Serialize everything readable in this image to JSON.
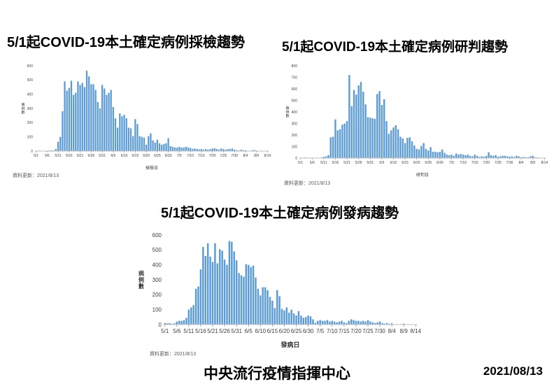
{
  "page": {
    "footer_org": "中央流行疫情指揮中心",
    "footer_date": "2021/08/13"
  },
  "colors": {
    "bar": "#5B9BD5",
    "axis_line": "#BFBFBF",
    "tick_mark": "#8C8C8C",
    "tick_text": "#404040",
    "axis_title_text": "#303030"
  },
  "chart_data": [
    {
      "type": "bar",
      "title": "5/1起COVID-19本土確定病例採檢趨勢",
      "xlabel": "採檢日",
      "ylabel": "病例數",
      "footnote": "資料更新：2021/8/13",
      "ylim": [
        0,
        600
      ],
      "ytick_step": 100,
      "x_tick_every": 5,
      "grid": false,
      "legend": false,
      "categories": [
        "5/1",
        "5/2",
        "5/3",
        "5/4",
        "5/5",
        "5/6",
        "5/7",
        "5/8",
        "5/9",
        "5/10",
        "5/11",
        "5/12",
        "5/13",
        "5/14",
        "5/15",
        "5/16",
        "5/17",
        "5/18",
        "5/19",
        "5/20",
        "5/21",
        "5/22",
        "5/23",
        "5/24",
        "5/25",
        "5/26",
        "5/27",
        "5/28",
        "5/29",
        "5/30",
        "5/31",
        "6/1",
        "6/2",
        "6/3",
        "6/4",
        "6/5",
        "6/6",
        "6/7",
        "6/8",
        "6/9",
        "6/10",
        "6/11",
        "6/12",
        "6/13",
        "6/14",
        "6/15",
        "6/16",
        "6/17",
        "6/18",
        "6/19",
        "6/20",
        "6/21",
        "6/22",
        "6/23",
        "6/24",
        "6/25",
        "6/26",
        "6/27",
        "6/28",
        "6/29",
        "6/30",
        "7/1",
        "7/2",
        "7/3",
        "7/4",
        "7/5",
        "7/6",
        "7/7",
        "7/8",
        "7/9",
        "7/10",
        "7/11",
        "7/12",
        "7/13",
        "7/14",
        "7/15",
        "7/16",
        "7/17",
        "7/18",
        "7/19",
        "7/20",
        "7/21",
        "7/22",
        "7/23",
        "7/24",
        "7/25",
        "7/26",
        "7/27",
        "7/28",
        "7/29",
        "7/30",
        "7/31",
        "8/1",
        "8/2",
        "8/3",
        "8/4",
        "8/5",
        "8/6",
        "8/7",
        "8/8",
        "8/9",
        "8/10",
        "8/11",
        "8/12",
        "8/13",
        "8/14"
      ],
      "values": [
        3,
        3,
        3,
        2,
        3,
        3,
        4,
        5,
        5,
        15,
        65,
        100,
        280,
        490,
        425,
        445,
        495,
        395,
        410,
        490,
        465,
        480,
        450,
        565,
        525,
        470,
        470,
        430,
        345,
        300,
        465,
        440,
        395,
        410,
        430,
        310,
        230,
        165,
        265,
        245,
        255,
        230,
        165,
        160,
        105,
        225,
        190,
        105,
        100,
        95,
        45,
        105,
        125,
        75,
        60,
        80,
        55,
        45,
        50,
        55,
        90,
        35,
        30,
        25,
        25,
        30,
        25,
        25,
        30,
        25,
        22,
        15,
        18,
        15,
        12,
        15,
        10,
        14,
        10,
        14,
        18,
        20,
        15,
        10,
        18,
        14,
        10,
        14,
        15,
        18,
        10,
        6,
        5,
        10,
        6,
        5,
        2,
        2,
        5,
        8,
        3,
        2,
        2,
        1,
        1,
        1
      ]
    },
    {
      "type": "bar",
      "title": "5/1起COVID-19本土確定病例研判趨勢",
      "xlabel": "研判日",
      "ylabel": "病例數",
      "footnote": "資料更新：2021/8/13",
      "ylim": [
        0,
        800
      ],
      "ytick_step": 100,
      "x_tick_every": 5,
      "grid": false,
      "legend": false,
      "categories": [
        "5/1",
        "5/2",
        "5/3",
        "5/4",
        "5/5",
        "5/6",
        "5/7",
        "5/8",
        "5/9",
        "5/10",
        "5/11",
        "5/12",
        "5/13",
        "5/14",
        "5/15",
        "5/16",
        "5/17",
        "5/18",
        "5/19",
        "5/20",
        "5/21",
        "5/22",
        "5/23",
        "5/24",
        "5/25",
        "5/26",
        "5/27",
        "5/28",
        "5/29",
        "5/30",
        "5/31",
        "6/1",
        "6/2",
        "6/3",
        "6/4",
        "6/5",
        "6/6",
        "6/7",
        "6/8",
        "6/9",
        "6/10",
        "6/11",
        "6/12",
        "6/13",
        "6/14",
        "6/15",
        "6/16",
        "6/17",
        "6/18",
        "6/19",
        "6/20",
        "6/21",
        "6/22",
        "6/23",
        "6/24",
        "6/25",
        "6/26",
        "6/27",
        "6/28",
        "6/29",
        "6/30",
        "7/1",
        "7/2",
        "7/3",
        "7/4",
        "7/5",
        "7/6",
        "7/7",
        "7/8",
        "7/9",
        "7/10",
        "7/11",
        "7/12",
        "7/13",
        "7/14",
        "7/15",
        "7/16",
        "7/17",
        "7/18",
        "7/19",
        "7/20",
        "7/21",
        "7/22",
        "7/23",
        "7/24",
        "7/25",
        "7/26",
        "7/27",
        "7/28",
        "7/29",
        "7/30",
        "7/31",
        "8/1",
        "8/2",
        "8/3",
        "8/4",
        "8/5",
        "8/6",
        "8/7",
        "8/8",
        "8/9",
        "8/10",
        "8/11",
        "8/12",
        "8/13",
        "8/14"
      ],
      "values": [
        2,
        2,
        5,
        2,
        2,
        2,
        2,
        2,
        3,
        5,
        10,
        15,
        25,
        180,
        185,
        335,
        240,
        250,
        290,
        300,
        320,
        720,
        450,
        590,
        550,
        630,
        660,
        575,
        465,
        355,
        350,
        345,
        340,
        555,
        580,
        460,
        510,
        320,
        210,
        240,
        265,
        285,
        250,
        185,
        170,
        130,
        175,
        180,
        145,
        110,
        80,
        75,
        105,
        130,
        80,
        65,
        95,
        55,
        55,
        50,
        55,
        75,
        45,
        30,
        25,
        30,
        20,
        40,
        30,
        35,
        30,
        25,
        30,
        20,
        15,
        30,
        20,
        10,
        15,
        12,
        20,
        50,
        25,
        20,
        25,
        12,
        15,
        20,
        20,
        15,
        12,
        15,
        10,
        20,
        15,
        6,
        10,
        6,
        6,
        15,
        20,
        6,
        5,
        3,
        2,
        1
      ]
    },
    {
      "type": "bar",
      "title": "5/1起COVID-19本土確定病例發病趨勢",
      "xlabel": "發病日",
      "ylabel": "病例數",
      "footnote": "資料更新：2021/8/13",
      "ylim": [
        0,
        600
      ],
      "ytick_step": 100,
      "x_tick_every": 5,
      "grid": false,
      "legend": false,
      "categories": [
        "5/1",
        "5/2",
        "5/3",
        "5/4",
        "5/5",
        "5/6",
        "5/7",
        "5/8",
        "5/9",
        "5/10",
        "5/11",
        "5/12",
        "5/13",
        "5/14",
        "5/15",
        "5/16",
        "5/17",
        "5/18",
        "5/19",
        "5/20",
        "5/21",
        "5/22",
        "5/23",
        "5/24",
        "5/25",
        "5/26",
        "5/27",
        "5/28",
        "5/29",
        "5/30",
        "5/31",
        "6/1",
        "6/2",
        "6/3",
        "6/4",
        "6/5",
        "6/6",
        "6/7",
        "6/8",
        "6/9",
        "6/10",
        "6/11",
        "6/12",
        "6/13",
        "6/14",
        "6/15",
        "6/16",
        "6/17",
        "6/18",
        "6/19",
        "6/20",
        "6/21",
        "6/22",
        "6/23",
        "6/24",
        "6/25",
        "6/26",
        "6/27",
        "6/28",
        "6/29",
        "6/30",
        "7/1",
        "7/2",
        "7/3",
        "7/4",
        "7/5",
        "7/6",
        "7/7",
        "7/8",
        "7/9",
        "7/10",
        "7/11",
        "7/12",
        "7/13",
        "7/14",
        "7/15",
        "7/16",
        "7/17",
        "7/18",
        "7/19",
        "7/20",
        "7/21",
        "7/22",
        "7/23",
        "7/24",
        "7/25",
        "7/26",
        "7/27",
        "7/28",
        "7/29",
        "7/30",
        "7/31",
        "8/1",
        "8/2",
        "8/3",
        "8/4",
        "8/5",
        "8/6",
        "8/7",
        "8/8",
        "8/9",
        "8/10",
        "8/11",
        "8/12",
        "8/13",
        "8/14"
      ],
      "values": [
        10,
        8,
        10,
        5,
        8,
        20,
        25,
        25,
        30,
        45,
        100,
        115,
        130,
        240,
        255,
        370,
        520,
        460,
        545,
        455,
        420,
        545,
        410,
        505,
        495,
        435,
        400,
        560,
        555,
        490,
        430,
        345,
        330,
        320,
        405,
        400,
        385,
        395,
        315,
        240,
        195,
        250,
        250,
        230,
        185,
        160,
        110,
        230,
        190,
        105,
        95,
        115,
        80,
        100,
        75,
        60,
        90,
        60,
        45,
        50,
        60,
        55,
        35,
        12,
        25,
        30,
        25,
        25,
        30,
        20,
        25,
        20,
        15,
        20,
        25,
        15,
        10,
        25,
        35,
        30,
        25,
        25,
        20,
        25,
        20,
        30,
        20,
        15,
        10,
        15,
        20,
        10,
        6,
        10,
        5,
        8,
        2,
        2,
        2,
        3,
        6,
        2,
        2,
        1,
        1,
        0
      ]
    }
  ]
}
